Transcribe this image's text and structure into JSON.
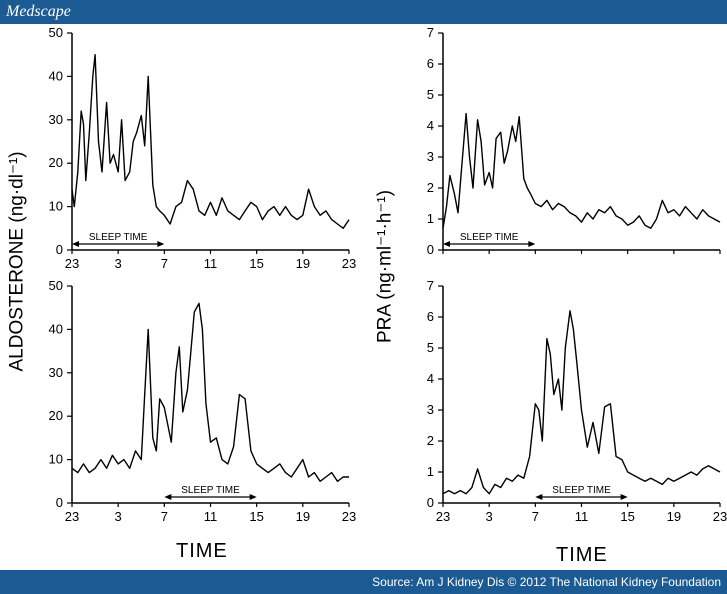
{
  "header": {
    "brand": "Medscape"
  },
  "footer": {
    "source": "Source: Am J Kidney Dis © 2012 The National Kidney Foundation"
  },
  "colors": {
    "bar": "#1b5a93",
    "ink": "#000000"
  },
  "labels": {
    "left_ylabel": "ALDOSTERONE (ng·dl⁻¹)",
    "right_ylabel": "PRA (ng·ml⁻¹·h⁻¹)",
    "left_xlabel": "TIME",
    "right_xlabel": "TIME"
  },
  "chart_data": [
    {
      "type": "line",
      "panel": "top-left",
      "ylim": [
        0,
        50
      ],
      "yticks": [
        0,
        10,
        20,
        30,
        40,
        50
      ],
      "xticks": [
        "23",
        "3",
        "7",
        "11",
        "15",
        "19",
        "23"
      ],
      "xlim": [
        0,
        24
      ],
      "annotation": {
        "text": "SLEEP TIME",
        "from": 0,
        "to": 8
      },
      "x": [
        0,
        0.2,
        0.5,
        0.8,
        1.0,
        1.2,
        1.5,
        1.8,
        2.0,
        2.3,
        2.6,
        3.0,
        3.3,
        3.6,
        4.0,
        4.3,
        4.6,
        5.0,
        5.3,
        5.6,
        6.0,
        6.3,
        6.6,
        7.0,
        7.3,
        7.6,
        8.0,
        8.5,
        9.0,
        9.5,
        10.0,
        10.5,
        11.0,
        11.5,
        12.0,
        12.5,
        13.0,
        13.5,
        14.0,
        14.5,
        15.0,
        15.5,
        16.0,
        16.5,
        17.0,
        17.5,
        18.0,
        18.5,
        19.0,
        19.5,
        20.0,
        20.5,
        21.0,
        21.5,
        22.0,
        22.5,
        23.0,
        23.5,
        24.0
      ],
      "y": [
        14,
        10,
        18,
        32,
        29,
        16,
        27,
        40,
        45,
        25,
        18,
        34,
        20,
        22,
        18,
        30,
        16,
        18,
        25,
        27,
        31,
        24,
        40,
        15,
        10,
        9,
        8,
        6,
        10,
        11,
        16,
        14,
        9,
        8,
        11,
        8,
        12,
        9,
        8,
        7,
        9,
        11,
        10,
        7,
        9,
        10,
        8,
        10,
        8,
        7,
        8,
        14,
        10,
        8,
        9,
        7,
        6,
        5,
        7
      ]
    },
    {
      "type": "line",
      "panel": "top-right",
      "ylim": [
        0,
        7
      ],
      "yticks": [
        0,
        1,
        2,
        3,
        4,
        5,
        6,
        7
      ],
      "xticks": [],
      "xlim": [
        0,
        24
      ],
      "annotation": {
        "text": "SLEEP TIME",
        "from": 0,
        "to": 8
      },
      "x": [
        0,
        0.3,
        0.6,
        1.0,
        1.3,
        1.6,
        2.0,
        2.3,
        2.6,
        3.0,
        3.3,
        3.6,
        4.0,
        4.3,
        4.6,
        5.0,
        5.3,
        5.6,
        6.0,
        6.3,
        6.6,
        7.0,
        7.3,
        7.6,
        8.0,
        8.5,
        9.0,
        9.5,
        10.0,
        10.5,
        11.0,
        11.5,
        12.0,
        12.5,
        13.0,
        13.5,
        14.0,
        14.5,
        15.0,
        15.5,
        16.0,
        16.5,
        17.0,
        17.5,
        18.0,
        18.5,
        19.0,
        19.5,
        20.0,
        20.5,
        21.0,
        21.5,
        22.0,
        22.5,
        23.0,
        23.5,
        24.0
      ],
      "y": [
        0.7,
        1.4,
        2.4,
        1.8,
        1.2,
        2.6,
        4.4,
        3.0,
        2.0,
        4.2,
        3.5,
        2.1,
        2.5,
        2.0,
        3.6,
        3.8,
        2.8,
        3.2,
        4.0,
        3.5,
        4.3,
        2.3,
        2.0,
        1.8,
        1.5,
        1.4,
        1.6,
        1.3,
        1.5,
        1.4,
        1.2,
        1.1,
        0.9,
        1.2,
        1.0,
        1.3,
        1.2,
        1.4,
        1.1,
        1.0,
        0.8,
        0.9,
        1.1,
        0.8,
        0.7,
        1.0,
        1.6,
        1.2,
        1.3,
        1.1,
        1.4,
        1.2,
        1.0,
        1.3,
        1.1,
        1.0,
        0.9
      ]
    },
    {
      "type": "line",
      "panel": "bottom-left",
      "ylim": [
        0,
        50
      ],
      "yticks": [
        0,
        10,
        20,
        30,
        40,
        50
      ],
      "xticks": [
        "23",
        "3",
        "7",
        "11",
        "15",
        "19",
        "23"
      ],
      "xlim": [
        0,
        24
      ],
      "annotation": {
        "text": "SLEEP TIME",
        "from": 8,
        "to": 16
      },
      "x": [
        0,
        0.5,
        1.0,
        1.5,
        2.0,
        2.5,
        3.0,
        3.5,
        4.0,
        4.5,
        5.0,
        5.5,
        6.0,
        6.3,
        6.6,
        7.0,
        7.3,
        7.6,
        8.0,
        8.3,
        8.6,
        9.0,
        9.3,
        9.6,
        10.0,
        10.3,
        10.6,
        11.0,
        11.3,
        11.6,
        12.0,
        12.5,
        13.0,
        13.5,
        14.0,
        14.5,
        15.0,
        15.5,
        16.0,
        16.5,
        17.0,
        17.5,
        18.0,
        18.5,
        19.0,
        19.5,
        20.0,
        20.5,
        21.0,
        21.5,
        22.0,
        22.5,
        23.0,
        23.5,
        24.0
      ],
      "y": [
        8,
        7,
        9,
        7,
        8,
        10,
        8,
        11,
        9,
        10,
        8,
        12,
        10,
        25,
        40,
        15,
        12,
        24,
        22,
        18,
        14,
        30,
        36,
        21,
        26,
        35,
        44,
        46,
        40,
        23,
        14,
        15,
        10,
        9,
        13,
        25,
        24,
        12,
        9,
        8,
        7,
        8,
        9,
        7,
        6,
        8,
        10,
        6,
        7,
        5,
        6,
        7,
        5,
        6,
        6
      ]
    },
    {
      "type": "line",
      "panel": "bottom-right",
      "ylim": [
        0,
        7
      ],
      "yticks": [
        0,
        1,
        2,
        3,
        4,
        5,
        6,
        7
      ],
      "xticks": [
        "23",
        "3",
        "7",
        "11",
        "15",
        "19",
        "23"
      ],
      "xlim": [
        0,
        24
      ],
      "annotation": {
        "text": "SLEEP TIME",
        "from": 8,
        "to": 16
      },
      "x": [
        0,
        0.5,
        1.0,
        1.5,
        2.0,
        2.5,
        3.0,
        3.5,
        4.0,
        4.5,
        5.0,
        5.5,
        6.0,
        6.5,
        7.0,
        7.5,
        8.0,
        8.3,
        8.6,
        9.0,
        9.3,
        9.6,
        10.0,
        10.3,
        10.6,
        11.0,
        11.3,
        11.6,
        12.0,
        12.5,
        13.0,
        13.5,
        14.0,
        14.5,
        15.0,
        15.5,
        16.0,
        16.5,
        17.0,
        17.5,
        18.0,
        18.5,
        19.0,
        19.5,
        20.0,
        20.5,
        21.0,
        21.5,
        22.0,
        22.5,
        23.0,
        23.5,
        24.0
      ],
      "y": [
        0.3,
        0.4,
        0.3,
        0.4,
        0.3,
        0.5,
        1.1,
        0.5,
        0.3,
        0.6,
        0.5,
        0.8,
        0.7,
        0.9,
        0.8,
        1.5,
        3.2,
        3.0,
        2.0,
        5.3,
        4.8,
        3.5,
        4.0,
        3.0,
        5.0,
        6.2,
        5.6,
        4.5,
        3.0,
        1.8,
        2.6,
        1.6,
        3.1,
        3.2,
        1.5,
        1.4,
        1.0,
        0.9,
        0.8,
        0.7,
        0.8,
        0.7,
        0.6,
        0.8,
        0.7,
        0.8,
        0.9,
        1.0,
        0.9,
        1.1,
        1.2,
        1.1,
        1.0
      ]
    }
  ]
}
